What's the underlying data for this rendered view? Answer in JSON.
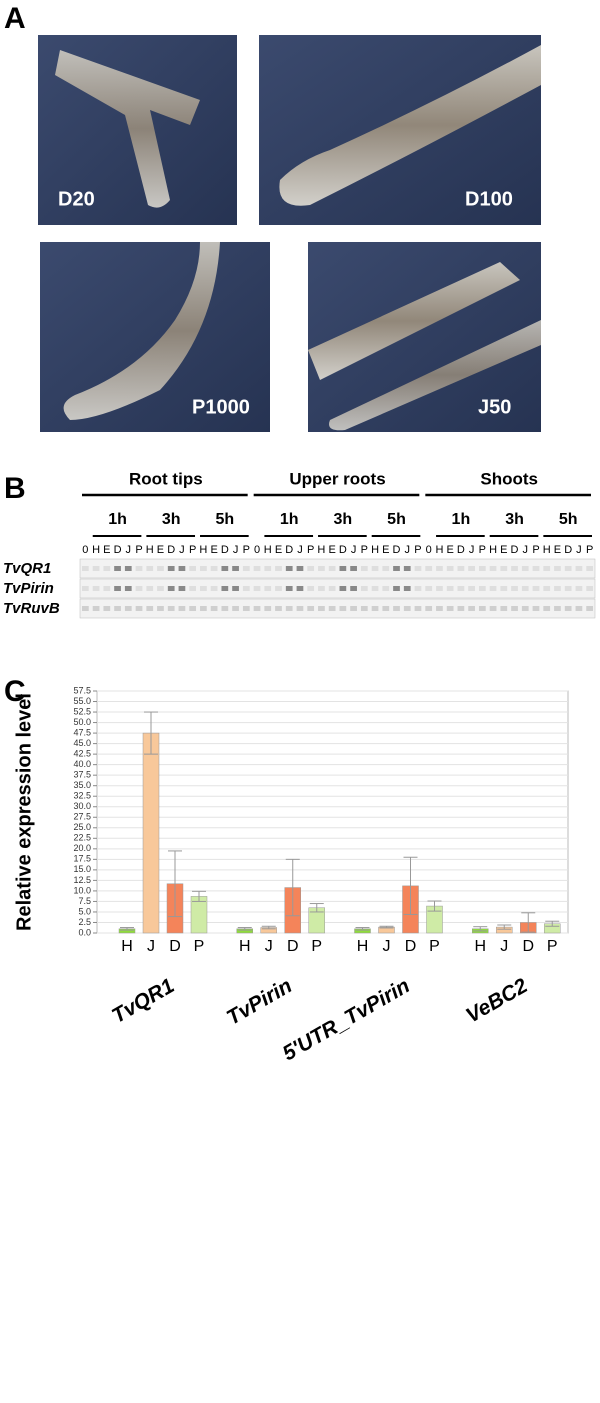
{
  "panels": {
    "A": {
      "label": "A",
      "images": [
        {
          "label": "D20"
        },
        {
          "label": "D100"
        },
        {
          "label": "P1000"
        },
        {
          "label": "J50"
        }
      ]
    },
    "B": {
      "label": "B",
      "groups": [
        {
          "label": "Root tips",
          "times": [
            "1h",
            "3h",
            "5h"
          ],
          "lanes": [
            "0",
            "H",
            "E",
            "D",
            "J",
            "P",
            "H",
            "E",
            "D",
            "J",
            "P",
            "H",
            "E",
            "D",
            "J",
            "P"
          ]
        },
        {
          "label": "Upper roots",
          "times": [
            "1h",
            "3h",
            "5h"
          ],
          "lanes": [
            "0",
            "H",
            "E",
            "D",
            "J",
            "P",
            "H",
            "E",
            "D",
            "J",
            "P",
            "H",
            "E",
            "D",
            "J",
            "P"
          ]
        },
        {
          "label": "Shoots",
          "times": [
            "1h",
            "3h",
            "5h"
          ],
          "lanes": [
            "0",
            "H",
            "E",
            "D",
            "J",
            "P",
            "H",
            "E",
            "D",
            "J",
            "P",
            "H",
            "E",
            "D",
            "J",
            "P"
          ]
        }
      ],
      "rows": [
        "TvQR1",
        "TvPirin",
        "TvRuvB"
      ]
    },
    "C": {
      "label": "C"
    }
  },
  "chart_data": {
    "type": "bar",
    "y_label": "Relative expression level",
    "categories": [
      "TvQR1",
      "TvPirin",
      "5'UTR_TvPirin",
      "VeBC2"
    ],
    "series": [
      {
        "name": "H",
        "color": "#8fdc3c",
        "values": [
          1.0,
          1.0,
          1.0,
          1.0
        ],
        "errors": [
          0.3,
          0.3,
          0.3,
          0.5
        ]
      },
      {
        "name": "J",
        "color": "#f8c89a",
        "values": [
          47.5,
          1.3,
          1.4,
          1.4
        ],
        "errors": [
          5.0,
          0.3,
          0.2,
          0.5
        ]
      },
      {
        "name": "D",
        "color": "#f4845a",
        "values": [
          11.7,
          10.8,
          11.2,
          2.5
        ],
        "errors": [
          7.8,
          6.7,
          6.8,
          2.3
        ]
      },
      {
        "name": "P",
        "color": "#cfeba6",
        "values": [
          8.7,
          6.0,
          6.4,
          2.2
        ],
        "errors": [
          1.2,
          1.0,
          1.2,
          0.6
        ]
      }
    ],
    "ylim": [
      0,
      57.5
    ],
    "yticks": [
      {
        "value": 0,
        "label": "0.0"
      },
      {
        "value": 2.5,
        "label": "2.5"
      },
      {
        "value": 5,
        "label": "5.0"
      },
      {
        "value": 7.5,
        "label": "7.5"
      },
      {
        "value": 10,
        "label": "10.0"
      },
      {
        "value": 12.5,
        "label": "12.5"
      },
      {
        "value": 15,
        "label": "15.0"
      },
      {
        "value": 17.5,
        "label": "17.5"
      },
      {
        "value": 20,
        "label": "20.0"
      },
      {
        "value": 22.5,
        "label": "22.5"
      },
      {
        "value": 25,
        "label": "25.0"
      },
      {
        "value": 27.5,
        "label": "27.5"
      },
      {
        "value": 30,
        "label": "30.0"
      },
      {
        "value": 32.5,
        "label": "32.5"
      },
      {
        "value": 35,
        "label": "35.0"
      },
      {
        "value": 37.5,
        "label": "37.5"
      },
      {
        "value": 40,
        "label": "40.0"
      },
      {
        "value": 42.5,
        "label": "42.5"
      },
      {
        "value": 45,
        "label": "45.0"
      },
      {
        "value": 47.5,
        "label": "47.5"
      },
      {
        "value": 50,
        "label": "50.0"
      },
      {
        "value": 52.5,
        "label": "52.5"
      },
      {
        "value": 55,
        "label": "55.0"
      },
      {
        "value": 57.5,
        "label": "57.5"
      }
    ],
    "grid": true
  }
}
